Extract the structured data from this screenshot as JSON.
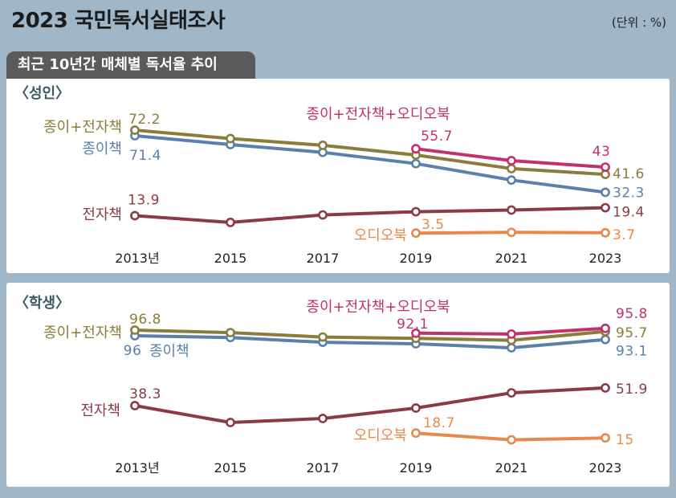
{
  "header": {
    "title": "2023 국민독서실태조사",
    "unit": "(단위 : %)",
    "subtitle": "최근 10년간 매체별 독서율 추이"
  },
  "colors": {
    "background": "#a0b7ca",
    "panel": "#ffffff",
    "tab": "#5a5a5a",
    "tab_text": "#ffffff",
    "title_text": "#1b1b1b",
    "panel_title_text": "#3b5a66"
  },
  "chart_data": [
    {
      "type": "line",
      "title": "〈성인〉",
      "categories": [
        "2013년",
        "2015",
        "2017",
        "2019",
        "2021",
        "2023"
      ],
      "series": [
        {
          "name": "종이+전자책",
          "color": "#8c7c3c",
          "values": [
            72.2,
            66.4,
            61.7,
            55.0,
            45.6,
            41.6
          ],
          "labeled_points": [
            0,
            5
          ]
        },
        {
          "name": "종이책",
          "color": "#5a80ab",
          "values": [
            71.4,
            65.3,
            59.9,
            52.1,
            40.7,
            32.3
          ],
          "labeled_points": [
            0,
            5
          ]
        },
        {
          "name": "종이+전자책+오디오북",
          "color": "#c4306c",
          "values": [
            null,
            null,
            null,
            55.7,
            47.5,
            43
          ],
          "labeled_points": [
            3,
            5
          ]
        },
        {
          "name": "전자책",
          "color": "#8b3a46",
          "values": [
            13.9,
            9.2,
            14.4,
            16.6,
            17.8,
            19.4
          ],
          "labeled_points": [
            0,
            5
          ]
        },
        {
          "name": "오디오북",
          "color": "#e8894c",
          "values": [
            null,
            null,
            null,
            3.5,
            4.0,
            3.7
          ],
          "labeled_points": [
            3,
            5
          ]
        }
      ]
    },
    {
      "type": "line",
      "title": "〈학생〉",
      "categories": [
        "2013년",
        "2015",
        "2017",
        "2019",
        "2021",
        "2023"
      ],
      "series": [
        {
          "name": "종이+전자책",
          "color": "#8c7c3c",
          "values": [
            96.8,
            94.9,
            91.5,
            90.5,
            89.0,
            95.7
          ],
          "labeled_points": [
            0,
            5
          ]
        },
        {
          "name": "종이책",
          "color": "#5a80ab",
          "values": [
            96,
            94.6,
            91.0,
            89.8,
            86.7,
            93.1
          ],
          "labeled_points": [
            0,
            5
          ]
        },
        {
          "name": "종이+전자책+오디오북",
          "color": "#c4306c",
          "values": [
            null,
            null,
            null,
            92.1,
            91.4,
            95.8
          ],
          "labeled_points": [
            3,
            5
          ]
        },
        {
          "name": "전자책",
          "color": "#8b3a46",
          "values": [
            38.3,
            25.3,
            28.4,
            36.4,
            48.1,
            51.9
          ],
          "labeled_points": [
            0,
            5
          ]
        },
        {
          "name": "오디오북",
          "color": "#e8894c",
          "values": [
            null,
            null,
            null,
            18.7,
            13.5,
            15
          ],
          "labeled_points": [
            3,
            5
          ]
        }
      ]
    }
  ]
}
